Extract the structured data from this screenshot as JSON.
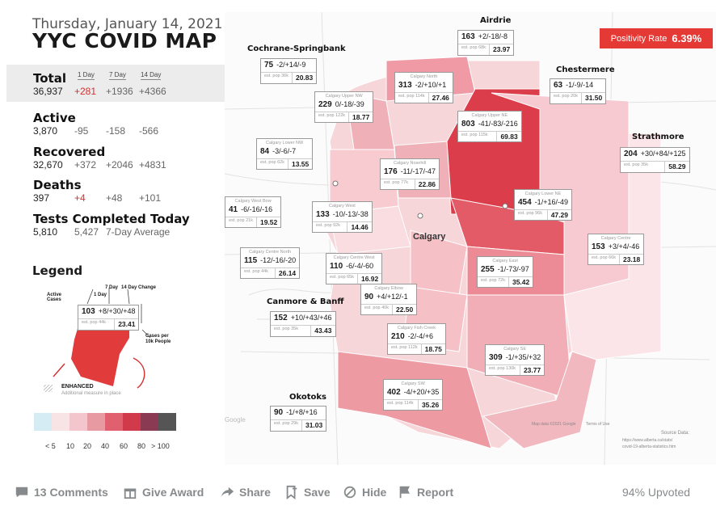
{
  "header": {
    "date": "Thursday, January 14, 2021",
    "title": "YYC COVID MAP"
  },
  "positivity": {
    "label": "Positivity Rate",
    "value": "6.39%"
  },
  "stats": {
    "col_headers": [
      "1 Day",
      "7 Day",
      "14 Day"
    ],
    "total": {
      "label": "Total",
      "value": "36,937",
      "d1": "+281",
      "d7": "+1936",
      "d14": "+4366"
    },
    "active": {
      "label": "Active",
      "value": "3,870",
      "d1": "-95",
      "d7": "-158",
      "d14": "-566"
    },
    "recovered": {
      "label": "Recovered",
      "value": "32,670",
      "d1": "+372",
      "d7": "+2046",
      "d14": "+4831"
    },
    "deaths": {
      "label": "Deaths",
      "value": "397",
      "d1": "+4",
      "d7": "+48",
      "d14": "+101"
    },
    "tests": {
      "label": "Tests Completed Today",
      "value": "5,810",
      "avg": "5,427",
      "avg_label": "7-Day Average"
    }
  },
  "legend": {
    "title": "Legend",
    "active_cases": "Active Cases",
    "one_day": "1 Day",
    "seven_day": "7 Day",
    "fourteen_day": "14 Day Change",
    "sample_top": "103",
    "sample_changes": "+8/+30/+48",
    "sample_pop": "est. pop 44k",
    "sample_rate": "23.41",
    "cases_per": "Cases per 10k People",
    "enhanced": "ENHANCED",
    "enhanced_sub": "Additional measure in place",
    "scale": [
      "< 5",
      "10",
      "20",
      "40",
      "60",
      "80",
      "> 100"
    ],
    "scale_colors": [
      "#d6ecf5",
      "#f8e3e5",
      "#f2c6cc",
      "#e89aa2",
      "#e06070",
      "#d13a4a",
      "#8b3a54",
      "#555555"
    ]
  },
  "map": {
    "city_label": "Calgary",
    "regions": [
      {
        "name": "Airdrie",
        "value": "163",
        "changes": "+2/-18/-8",
        "pop": "est. pop 68k",
        "rate": "23.97"
      },
      {
        "name": "Cochrane-Springbank",
        "value": "75",
        "changes": "-2/+14/-9",
        "pop": "est. pop 36k",
        "rate": "20.83"
      },
      {
        "name": "Chestermere",
        "value": "63",
        "changes": "-1/-9/-14",
        "pop": "est. pop 20k",
        "rate": "31.50"
      },
      {
        "name": "Strathmore",
        "value": "204",
        "changes": "+30/+84/+125",
        "pop": "est. pop 35k",
        "rate": "58.29"
      },
      {
        "name": "Calgary North",
        "value": "313",
        "changes": "-2/+10/+1",
        "pop": "est. pop 114k",
        "rate": "27.46"
      },
      {
        "name": "Calgary Upper NW",
        "value": "229",
        "changes": "0/-18/-39",
        "pop": "est. pop 122k",
        "rate": "18.77"
      },
      {
        "name": "Calgary Upper NE",
        "value": "803",
        "changes": "-41/-83/-216",
        "pop": "est. pop 115k",
        "rate": "69.83"
      },
      {
        "name": "Calgary Lower NW",
        "value": "84",
        "changes": "-3/-6/-7",
        "pop": "est. pop 62k",
        "rate": "13.55"
      },
      {
        "name": "Calgary Nosehill",
        "value": "176",
        "changes": "-11/-17/-47",
        "pop": "est. pop 77k",
        "rate": "22.86"
      },
      {
        "name": "Calgary West Bow",
        "value": "41",
        "changes": "-6/-16/-16",
        "pop": "est. pop 21k",
        "rate": "19.52"
      },
      {
        "name": "Calgary West",
        "value": "133",
        "changes": "-10/-13/-38",
        "pop": "est. pop 92k",
        "rate": "14.46"
      },
      {
        "name": "Calgary Lower NE",
        "value": "454",
        "changes": "-1/+16/-49",
        "pop": "est. pop 96k",
        "rate": "47.29"
      },
      {
        "name": "Calgary Centre North",
        "value": "115",
        "changes": "-12/-16/-20",
        "pop": "est. pop 44k",
        "rate": "26.14"
      },
      {
        "name": "Calgary Centre West",
        "value": "110",
        "changes": "-6/-4/-60",
        "pop": "est. pop 65k",
        "rate": "16.92"
      },
      {
        "name": "Calgary East",
        "value": "255",
        "changes": "-1/-73/-97",
        "pop": "est. pop 72k",
        "rate": "35.42"
      },
      {
        "name": "Calgary Centre",
        "value": "153",
        "changes": "+3/+4/-46",
        "pop": "est. pop 66k",
        "rate": "23.18"
      },
      {
        "name": "Calgary Elbow",
        "value": "90",
        "changes": "+4/+12/-1",
        "pop": "est. pop 40k",
        "rate": "22.50"
      },
      {
        "name": "Canmore & Banff",
        "value": "152",
        "changes": "+10/+43/+46",
        "pop": "est. pop 35k",
        "rate": "43.43"
      },
      {
        "name": "Calgary Fish Creek",
        "value": "210",
        "changes": "-2/-4/+6",
        "pop": "est. pop 112k",
        "rate": "18.75"
      },
      {
        "name": "Calgary SE",
        "value": "309",
        "changes": "-1/+35/+32",
        "pop": "est. pop 130k",
        "rate": "23.77"
      },
      {
        "name": "Calgary SW",
        "value": "402",
        "changes": "-4/+20/+35",
        "pop": "est. pop 114k",
        "rate": "35.26"
      },
      {
        "name": "Okotoks",
        "value": "90",
        "changes": "-1/+8/+16",
        "pop": "est. pop 29k",
        "rate": "31.03"
      }
    ],
    "source": "Source Data:",
    "source_url1": "https://www.alberta.ca/stats/",
    "source_url2": "covid-19-alberta-statistics.htm",
    "map_credit": "Map data ©2021 Google",
    "terms": "Terms of Use",
    "google": "Google"
  },
  "actions": {
    "comments": "13 Comments",
    "award": "Give Award",
    "share": "Share",
    "save": "Save",
    "hide": "Hide",
    "report": "Report",
    "upvoted": "94% Upvoted"
  }
}
